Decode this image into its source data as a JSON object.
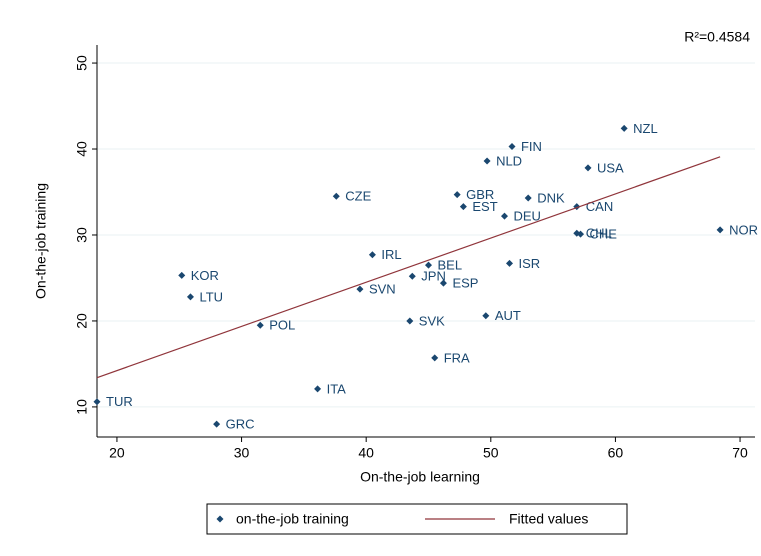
{
  "chart_data": {
    "type": "scatter",
    "x_label": "On-the-job learning",
    "y_label": "On-the-job training",
    "annotation": "R²=0.4584",
    "xlim": [
      18.4,
      71.2
    ],
    "xticks": [
      20,
      30,
      40,
      50,
      60,
      70
    ],
    "ylim": [
      6.5,
      52.1
    ],
    "yticks": [
      10,
      20,
      30,
      40,
      50
    ],
    "grid": true,
    "series": [
      {
        "name": "on-the-job training",
        "color": "#1a476f",
        "labels": [
          "TUR",
          "GRC",
          "POL",
          "ITA",
          "LTU",
          "KOR",
          "CZE",
          "IRL",
          "SVN",
          "JPN",
          "BEL",
          "ESP",
          "SVK",
          "FRA",
          "GBR",
          "EST",
          "DEU",
          "NLD",
          "FIN",
          "DNK",
          "ISR",
          "AUT",
          "CAN",
          "CHL",
          "CHE",
          "USA",
          "NZL",
          "NOR"
        ],
        "x": [
          18.4,
          28.0,
          31.5,
          36.1,
          25.9,
          25.2,
          37.6,
          40.5,
          39.5,
          43.7,
          45.0,
          46.2,
          43.5,
          45.5,
          47.3,
          47.8,
          51.1,
          49.7,
          51.7,
          53.0,
          51.5,
          49.6,
          56.9,
          56.9,
          57.2,
          57.8,
          60.7,
          68.4
        ],
        "values": [
          10.6,
          8.0,
          19.5,
          12.1,
          22.8,
          25.3,
          34.5,
          27.7,
          23.7,
          25.2,
          26.5,
          24.4,
          20.0,
          15.7,
          34.7,
          33.3,
          32.2,
          38.6,
          40.3,
          34.3,
          26.7,
          20.6,
          33.3,
          30.2,
          30.1,
          37.8,
          42.4,
          30.6
        ]
      },
      {
        "name": "Fitted values",
        "color": "#90353b",
        "x": [
          18.4,
          68.4
        ],
        "values": [
          13.4,
          39.1
        ]
      }
    ]
  }
}
